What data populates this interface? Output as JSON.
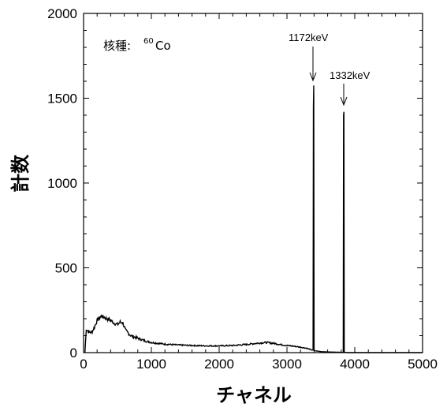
{
  "chart_data": {
    "type": "line",
    "xlabel": "チャネル",
    "ylabel": "計数",
    "xlim": [
      0,
      5000
    ],
    "ylim": [
      0,
      2000
    ],
    "xticks": [
      0,
      1000,
      2000,
      3000,
      4000,
      5000
    ],
    "yticks": [
      0,
      500,
      1000,
      1500,
      2000
    ],
    "nuclide_label": {
      "prefix": "核種:",
      "mass": "60",
      "element": "Co"
    },
    "annotations": [
      {
        "text": "1172keV",
        "x": 3390,
        "y": 1575
      },
      {
        "text": "1332keV",
        "x": 3840,
        "y": 1415
      }
    ],
    "spectrum": [
      [
        20,
        0
      ],
      [
        40,
        140
      ],
      [
        80,
        120
      ],
      [
        120,
        120
      ],
      [
        160,
        150
      ],
      [
        200,
        190
      ],
      [
        260,
        215
      ],
      [
        300,
        210
      ],
      [
        340,
        200
      ],
      [
        400,
        190
      ],
      [
        450,
        175
      ],
      [
        500,
        165
      ],
      [
        540,
        180
      ],
      [
        580,
        175
      ],
      [
        620,
        130
      ],
      [
        700,
        100
      ],
      [
        800,
        85
      ],
      [
        900,
        70
      ],
      [
        1000,
        60
      ],
      [
        1200,
        50
      ],
      [
        1400,
        45
      ],
      [
        1600,
        42
      ],
      [
        1800,
        40
      ],
      [
        2000,
        40
      ],
      [
        2200,
        42
      ],
      [
        2400,
        48
      ],
      [
        2550,
        55
      ],
      [
        2700,
        60
      ],
      [
        2800,
        55
      ],
      [
        2900,
        48
      ],
      [
        3000,
        42
      ],
      [
        3100,
        38
      ],
      [
        3200,
        32
      ],
      [
        3300,
        25
      ],
      [
        3370,
        15
      ],
      [
        3385,
        15
      ],
      [
        3390,
        1450
      ],
      [
        3395,
        1575
      ],
      [
        3400,
        12
      ],
      [
        3500,
        6
      ],
      [
        3600,
        4
      ],
      [
        3700,
        3
      ],
      [
        3800,
        2
      ],
      [
        3830,
        2
      ],
      [
        3835,
        1400
      ],
      [
        3840,
        1420
      ],
      [
        3845,
        2
      ],
      [
        3900,
        0
      ],
      [
        5000,
        0
      ]
    ]
  }
}
